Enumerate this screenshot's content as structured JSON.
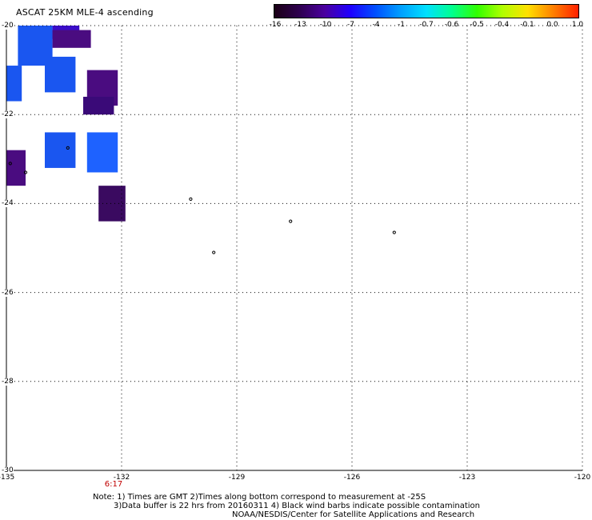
{
  "title": "ASCAT 25KM MLE-4 ascending",
  "colorbar": {
    "ticks": [
      "-16",
      "-13",
      "-10",
      "-7",
      "-4",
      "-1",
      "-0.7",
      "-0.6",
      "-0.5",
      "-0.4",
      "-0.1",
      "0.0",
      "1.0"
    ],
    "colors": [
      "#1a0016",
      "#2e0050",
      "#4b00a0",
      "#1e00ff",
      "#0050ff",
      "#00a0ff",
      "#00e0ff",
      "#00ff90",
      "#30ff00",
      "#b0ff00",
      "#ffe000",
      "#ff8000",
      "#ff2000"
    ]
  },
  "axes": {
    "lat_labels": [
      "-20",
      "-22",
      "-24",
      "-26",
      "-28",
      "-30"
    ],
    "lon_labels": [
      "-135",
      "-132",
      "-129",
      "-126",
      "-123",
      "-120"
    ],
    "lat_values": [
      -20,
      -22,
      -24,
      -26,
      -28,
      -30
    ],
    "lon_values": [
      -135,
      -132,
      -129,
      -126,
      -123,
      -120
    ]
  },
  "time_label": "6:17",
  "notes": {
    "line1": "Note: 1) Times are GMT 2)Times along bottom correspond to measurement at -25S",
    "line2": "3)Data buffer is 22 hrs from 20160311 4) Black wind barbs indicate possible contamination",
    "line3": "NOAA/NESDIS/Center for Satellite Applications and Research"
  },
  "data_cells": [
    {
      "lon0": -134.7,
      "lon1": -133.8,
      "lat0": -20.0,
      "lat1": -20.9,
      "color": "#1a56f0"
    },
    {
      "lon0": -133.8,
      "lon1": -133.1,
      "lat0": -20.0,
      "lat1": -20.3,
      "color": "#3a0cc8"
    },
    {
      "lon0": -133.8,
      "lon1": -132.8,
      "lat0": -20.1,
      "lat1": -20.5,
      "color": "#4a0c80"
    },
    {
      "lon0": -135.0,
      "lon1": -134.6,
      "lat0": -20.9,
      "lat1": -21.7,
      "color": "#1a56f0"
    },
    {
      "lon0": -134.0,
      "lon1": -133.2,
      "lat0": -20.7,
      "lat1": -21.5,
      "color": "#1a56f0"
    },
    {
      "lon0": -132.9,
      "lon1": -132.1,
      "lat0": -21.0,
      "lat1": -21.8,
      "color": "#4a0c80"
    },
    {
      "lon0": -133.0,
      "lon1": -132.2,
      "lat0": -21.6,
      "lat1": -22.0,
      "color": "#3a0a78"
    },
    {
      "lon0": -134.0,
      "lon1": -133.2,
      "lat0": -22.4,
      "lat1": -23.2,
      "color": "#1a56f0"
    },
    {
      "lon0": -132.9,
      "lon1": -132.1,
      "lat0": -22.4,
      "lat1": -23.3,
      "color": "#1e62ff"
    },
    {
      "lon0": -135.0,
      "lon1": -134.5,
      "lat0": -22.8,
      "lat1": -23.6,
      "color": "#4a0c80"
    },
    {
      "lon0": -132.6,
      "lon1": -131.9,
      "lat0": -23.6,
      "lat1": -24.4,
      "color": "#3a0a60"
    }
  ],
  "barbs": [
    {
      "lon": -133.4,
      "lat": -22.75
    },
    {
      "lon": -134.9,
      "lat": -23.1
    },
    {
      "lon": -134.5,
      "lat": -23.3
    },
    {
      "lon": -130.2,
      "lat": -23.9
    },
    {
      "lon": -129.6,
      "lat": -25.1
    },
    {
      "lon": -127.6,
      "lat": -24.4
    },
    {
      "lon": -124.9,
      "lat": -24.65
    }
  ]
}
